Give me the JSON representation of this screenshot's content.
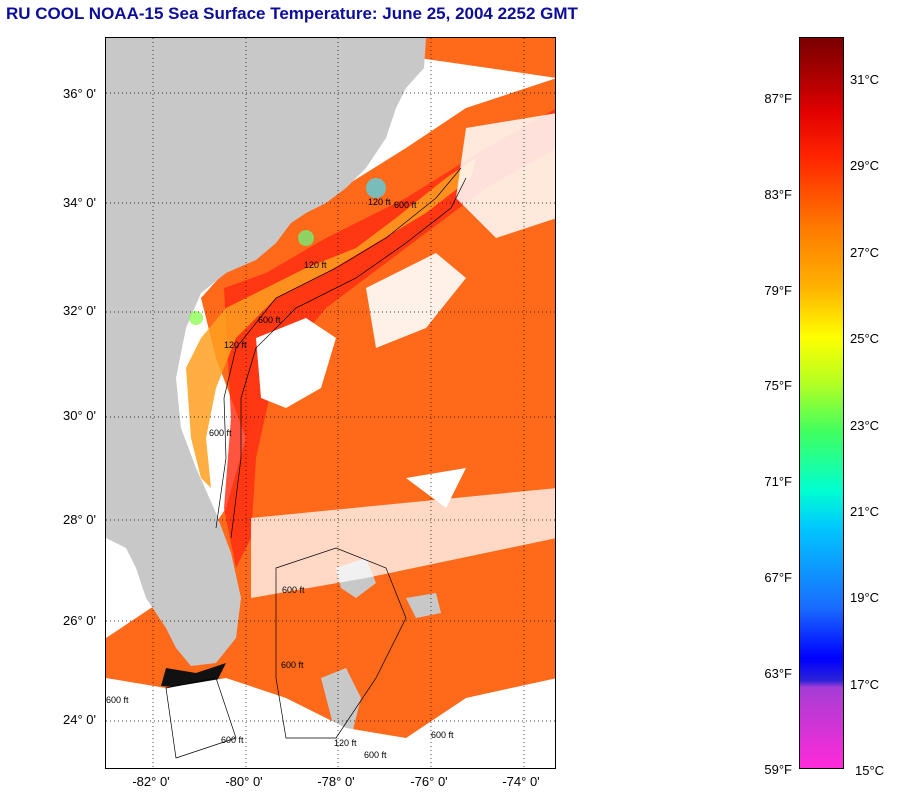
{
  "title": "RU COOL  NOAA-15  Sea Surface Temperature:  June 25, 2004 2252 GMT",
  "map": {
    "lat_labels": [
      "36° 0'",
      "34° 0'",
      "32° 0'",
      "30° 0'",
      "28° 0'",
      "26° 0'",
      "24° 0'"
    ],
    "lon_labels": [
      "-82° 0'",
      "-80° 0'",
      "-78° 0'",
      "-76° 0'",
      "-74° 0'"
    ],
    "contour_labels": {
      "c1": "120 ft",
      "c2": "600 ft",
      "c3": "120 ft",
      "c4": "600 ft",
      "c5": "120 ft",
      "c6": "600 ft",
      "c7": "600 ft",
      "c8": "600 ft",
      "c9": "600 ft",
      "c10": "600 ft",
      "c11": "600 ft",
      "c12": "120 ft",
      "c13": "600 ft"
    },
    "colors": {
      "land": "#c8c8c8",
      "warm": "#ff6a1a",
      "hot": "#ff2a10",
      "cool": "#ffa020",
      "cloud": "#ffffff"
    }
  },
  "colorbar": {
    "fahrenheit": [
      "87°F",
      "83°F",
      "79°F",
      "75°F",
      "71°F",
      "67°F",
      "63°F",
      "59°F"
    ],
    "celsius": [
      "31°C",
      "29°C",
      "27°C",
      "25°C",
      "23°C",
      "21°C",
      "19°C",
      "17°C",
      "15°C"
    ]
  }
}
